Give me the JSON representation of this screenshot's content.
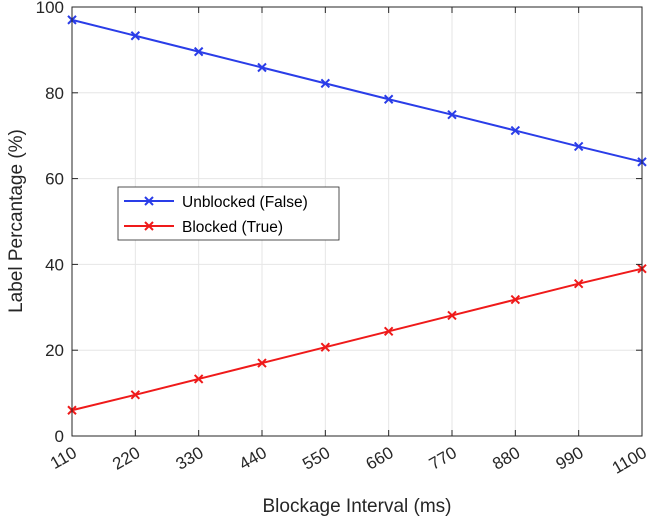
{
  "chart_data": {
    "type": "line",
    "xlabel": "Blockage Interval (ms)",
    "ylabel": "Label Percantage (%)",
    "x": [
      110,
      220,
      330,
      440,
      550,
      660,
      770,
      880,
      990,
      1100
    ],
    "xtick_labels": [
      "110",
      "220",
      "330",
      "440",
      "550",
      "660",
      "770",
      "880",
      "990",
      "1100"
    ],
    "xlim": [
      110,
      1100
    ],
    "ylim": [
      0,
      100
    ],
    "ytick_labels": [
      "0",
      "20",
      "40",
      "60",
      "80",
      "100"
    ],
    "yticks": [
      0,
      20,
      40,
      60,
      80,
      100
    ],
    "grid": true,
    "legend_position": "middle-left",
    "series": [
      {
        "name": "Unblocked (False)",
        "color": "#2a3de8",
        "marker": "x",
        "values": [
          97.0,
          93.3,
          89.6,
          85.9,
          82.2,
          78.5,
          74.9,
          71.2,
          67.5,
          63.9
        ]
      },
      {
        "name": "Blocked (True)",
        "color": "#ef1a1a",
        "marker": "x",
        "values": [
          6.0,
          9.6,
          13.3,
          17.0,
          20.7,
          24.4,
          28.1,
          31.8,
          35.5,
          39.0
        ]
      }
    ]
  }
}
